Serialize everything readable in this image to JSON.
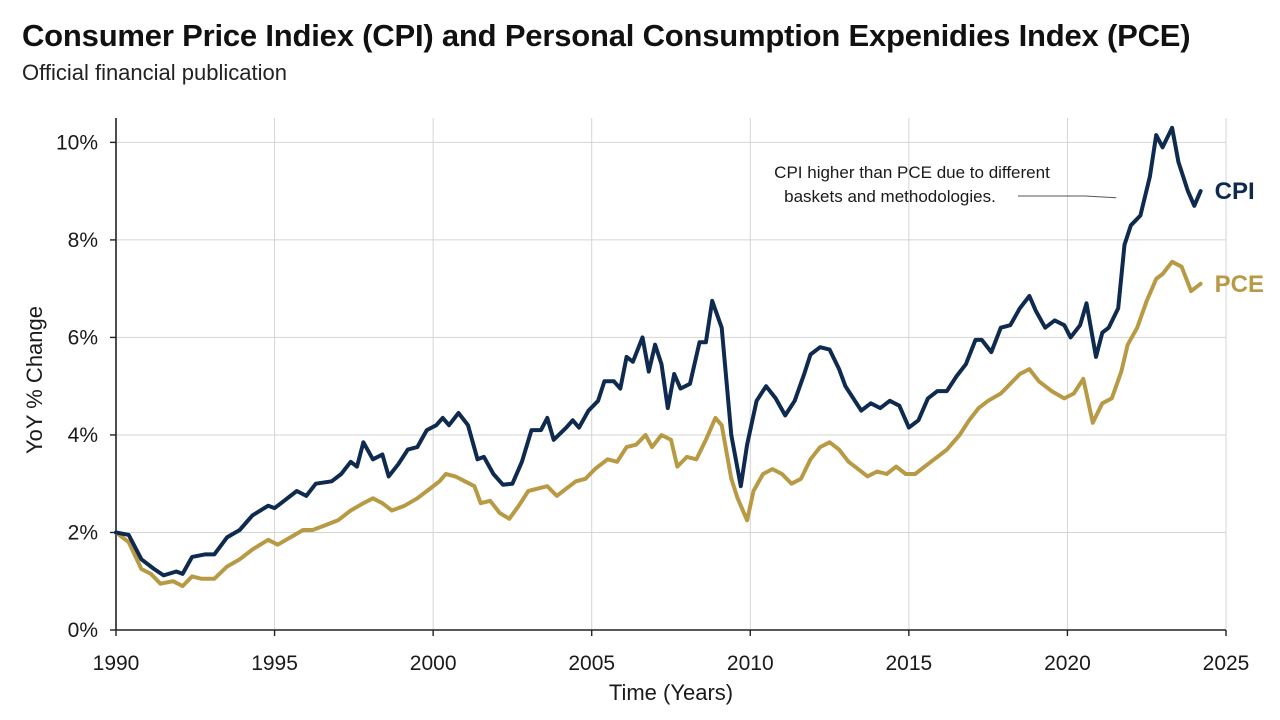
{
  "title": "Consumer Price Indiex (CPI) and Personal Consumption Expenidies Index (PCE)",
  "subtitle": "Official financial publication",
  "colors": {
    "cpi": "#0f2a4f",
    "pce": "#b89a45",
    "grid": "#d4d4d4",
    "axis": "#222222"
  },
  "chart_data": {
    "type": "line",
    "title": "Consumer Price Indiex (CPI) and Personal Consumption Expenidies Index (PCE)",
    "xlabel": "Time (Years)",
    "ylabel": "YoY % Change",
    "xlim": [
      1990,
      2025
    ],
    "ylim": [
      0,
      10.5
    ],
    "grid": true,
    "x_ticks": [
      1990,
      1995,
      2000,
      2005,
      2010,
      2015,
      2020,
      2025
    ],
    "x_tick_labels": [
      "1990",
      "1995",
      "2000",
      "2005",
      "2010",
      "2015",
      "2020",
      "2025"
    ],
    "y_ticks": [
      0,
      2,
      4,
      6,
      8,
      10
    ],
    "y_tick_labels": [
      "0%",
      "2%",
      "4%",
      "6%",
      "8%",
      "10%"
    ],
    "annotation": {
      "lines": [
        "CPI higher than PCE due to different",
        "baskets and methodologies."
      ],
      "points_to": {
        "series": "CPI",
        "x": 2021.6,
        "y": 8.7
      }
    },
    "series": [
      {
        "name": "CPI",
        "label": "CPI",
        "points": [
          [
            1990.0,
            2.0
          ],
          [
            1990.4,
            1.95
          ],
          [
            1990.8,
            1.45
          ],
          [
            1991.2,
            1.25
          ],
          [
            1991.5,
            1.12
          ],
          [
            1991.9,
            1.2
          ],
          [
            1992.1,
            1.15
          ],
          [
            1992.4,
            1.5
          ],
          [
            1992.8,
            1.55
          ],
          [
            1993.1,
            1.55
          ],
          [
            1993.5,
            1.9
          ],
          [
            1993.9,
            2.05
          ],
          [
            1994.3,
            2.35
          ],
          [
            1994.8,
            2.55
          ],
          [
            1995.0,
            2.5
          ],
          [
            1995.3,
            2.65
          ],
          [
            1995.7,
            2.85
          ],
          [
            1996.0,
            2.75
          ],
          [
            1996.3,
            3.0
          ],
          [
            1996.8,
            3.05
          ],
          [
            1997.1,
            3.2
          ],
          [
            1997.4,
            3.45
          ],
          [
            1997.6,
            3.35
          ],
          [
            1997.8,
            3.85
          ],
          [
            1998.1,
            3.5
          ],
          [
            1998.4,
            3.6
          ],
          [
            1998.6,
            3.15
          ],
          [
            1998.9,
            3.4
          ],
          [
            1999.2,
            3.7
          ],
          [
            1999.5,
            3.75
          ],
          [
            1999.8,
            4.1
          ],
          [
            2000.1,
            4.2
          ],
          [
            2000.3,
            4.35
          ],
          [
            2000.5,
            4.2
          ],
          [
            2000.8,
            4.45
          ],
          [
            2001.1,
            4.2
          ],
          [
            2001.4,
            3.5
          ],
          [
            2001.6,
            3.55
          ],
          [
            2001.9,
            3.2
          ],
          [
            2002.2,
            2.98
          ],
          [
            2002.5,
            3.0
          ],
          [
            2002.8,
            3.45
          ],
          [
            2003.1,
            4.1
          ],
          [
            2003.4,
            4.1
          ],
          [
            2003.6,
            4.35
          ],
          [
            2003.8,
            3.9
          ],
          [
            2004.2,
            4.15
          ],
          [
            2004.4,
            4.3
          ],
          [
            2004.6,
            4.15
          ],
          [
            2004.9,
            4.5
          ],
          [
            2005.2,
            4.7
          ],
          [
            2005.4,
            5.1
          ],
          [
            2005.7,
            5.1
          ],
          [
            2005.9,
            4.95
          ],
          [
            2006.1,
            5.6
          ],
          [
            2006.3,
            5.5
          ],
          [
            2006.6,
            6.0
          ],
          [
            2006.8,
            5.3
          ],
          [
            2007.0,
            5.85
          ],
          [
            2007.2,
            5.45
          ],
          [
            2007.4,
            4.55
          ],
          [
            2007.6,
            5.25
          ],
          [
            2007.8,
            4.95
          ],
          [
            2008.1,
            5.05
          ],
          [
            2008.4,
            5.9
          ],
          [
            2008.6,
            5.9
          ],
          [
            2008.8,
            6.75
          ],
          [
            2009.1,
            6.2
          ],
          [
            2009.4,
            4.0
          ],
          [
            2009.7,
            2.95
          ],
          [
            2009.9,
            3.8
          ],
          [
            2010.2,
            4.7
          ],
          [
            2010.5,
            5.0
          ],
          [
            2010.8,
            4.75
          ],
          [
            2011.1,
            4.4
          ],
          [
            2011.4,
            4.7
          ],
          [
            2011.7,
            5.25
          ],
          [
            2011.9,
            5.65
          ],
          [
            2012.2,
            5.8
          ],
          [
            2012.5,
            5.75
          ],
          [
            2012.8,
            5.35
          ],
          [
            2013.0,
            5.0
          ],
          [
            2013.3,
            4.7
          ],
          [
            2013.5,
            4.5
          ],
          [
            2013.8,
            4.65
          ],
          [
            2014.1,
            4.55
          ],
          [
            2014.4,
            4.7
          ],
          [
            2014.7,
            4.6
          ],
          [
            2015.0,
            4.15
          ],
          [
            2015.3,
            4.3
          ],
          [
            2015.6,
            4.75
          ],
          [
            2015.9,
            4.9
          ],
          [
            2016.2,
            4.9
          ],
          [
            2016.5,
            5.2
          ],
          [
            2016.8,
            5.45
          ],
          [
            2017.1,
            5.95
          ],
          [
            2017.3,
            5.95
          ],
          [
            2017.6,
            5.7
          ],
          [
            2017.9,
            6.2
          ],
          [
            2018.2,
            6.25
          ],
          [
            2018.5,
            6.6
          ],
          [
            2018.8,
            6.85
          ],
          [
            2019.0,
            6.55
          ],
          [
            2019.3,
            6.2
          ],
          [
            2019.6,
            6.35
          ],
          [
            2019.9,
            6.25
          ],
          [
            2020.1,
            6.0
          ],
          [
            2020.4,
            6.25
          ],
          [
            2020.6,
            6.7
          ],
          [
            2020.9,
            5.6
          ],
          [
            2021.1,
            6.1
          ],
          [
            2021.3,
            6.2
          ],
          [
            2021.6,
            6.6
          ],
          [
            2021.8,
            7.9
          ],
          [
            2022.0,
            8.3
          ],
          [
            2022.3,
            8.5
          ],
          [
            2022.6,
            9.3
          ],
          [
            2022.8,
            10.15
          ],
          [
            2023.0,
            9.9
          ],
          [
            2023.3,
            10.3
          ],
          [
            2023.5,
            9.6
          ],
          [
            2023.8,
            9.0
          ],
          [
            2024.0,
            8.7
          ],
          [
            2024.2,
            9.0
          ]
        ]
      },
      {
        "name": "PCE",
        "label": "PCE",
        "points": [
          [
            1990.0,
            2.0
          ],
          [
            1990.4,
            1.8
          ],
          [
            1990.8,
            1.25
          ],
          [
            1991.1,
            1.15
          ],
          [
            1991.4,
            0.95
          ],
          [
            1991.8,
            1.0
          ],
          [
            1992.1,
            0.9
          ],
          [
            1992.4,
            1.1
          ],
          [
            1992.7,
            1.05
          ],
          [
            1993.1,
            1.05
          ],
          [
            1993.5,
            1.3
          ],
          [
            1993.9,
            1.45
          ],
          [
            1994.3,
            1.65
          ],
          [
            1994.8,
            1.85
          ],
          [
            1995.1,
            1.75
          ],
          [
            1995.5,
            1.9
          ],
          [
            1995.9,
            2.05
          ],
          [
            1996.2,
            2.05
          ],
          [
            1996.6,
            2.15
          ],
          [
            1997.0,
            2.25
          ],
          [
            1997.4,
            2.45
          ],
          [
            1997.8,
            2.6
          ],
          [
            1998.1,
            2.7
          ],
          [
            1998.4,
            2.6
          ],
          [
            1998.7,
            2.45
          ],
          [
            1999.1,
            2.55
          ],
          [
            1999.5,
            2.7
          ],
          [
            1999.9,
            2.9
          ],
          [
            2000.2,
            3.05
          ],
          [
            2000.4,
            3.2
          ],
          [
            2000.7,
            3.15
          ],
          [
            2001.0,
            3.05
          ],
          [
            2001.3,
            2.95
          ],
          [
            2001.5,
            2.6
          ],
          [
            2001.8,
            2.65
          ],
          [
            2002.1,
            2.4
          ],
          [
            2002.4,
            2.28
          ],
          [
            2002.7,
            2.55
          ],
          [
            2003.0,
            2.85
          ],
          [
            2003.3,
            2.9
          ],
          [
            2003.6,
            2.95
          ],
          [
            2003.9,
            2.75
          ],
          [
            2004.2,
            2.9
          ],
          [
            2004.5,
            3.05
          ],
          [
            2004.8,
            3.1
          ],
          [
            2005.1,
            3.3
          ],
          [
            2005.5,
            3.5
          ],
          [
            2005.8,
            3.45
          ],
          [
            2006.1,
            3.75
          ],
          [
            2006.4,
            3.8
          ],
          [
            2006.7,
            4.0
          ],
          [
            2006.9,
            3.75
          ],
          [
            2007.2,
            4.0
          ],
          [
            2007.5,
            3.9
          ],
          [
            2007.7,
            3.35
          ],
          [
            2008.0,
            3.55
          ],
          [
            2008.3,
            3.5
          ],
          [
            2008.6,
            3.9
          ],
          [
            2008.9,
            4.35
          ],
          [
            2009.1,
            4.2
          ],
          [
            2009.4,
            3.1
          ],
          [
            2009.6,
            2.7
          ],
          [
            2009.9,
            2.25
          ],
          [
            2010.1,
            2.85
          ],
          [
            2010.4,
            3.2
          ],
          [
            2010.7,
            3.3
          ],
          [
            2011.0,
            3.2
          ],
          [
            2011.3,
            3.0
          ],
          [
            2011.6,
            3.1
          ],
          [
            2011.9,
            3.5
          ],
          [
            2012.2,
            3.75
          ],
          [
            2012.5,
            3.85
          ],
          [
            2012.8,
            3.7
          ],
          [
            2013.1,
            3.45
          ],
          [
            2013.4,
            3.3
          ],
          [
            2013.7,
            3.15
          ],
          [
            2014.0,
            3.25
          ],
          [
            2014.3,
            3.2
          ],
          [
            2014.6,
            3.35
          ],
          [
            2014.9,
            3.2
          ],
          [
            2015.2,
            3.2
          ],
          [
            2015.5,
            3.35
          ],
          [
            2015.8,
            3.5
          ],
          [
            2016.2,
            3.7
          ],
          [
            2016.6,
            4.0
          ],
          [
            2016.9,
            4.3
          ],
          [
            2017.2,
            4.55
          ],
          [
            2017.5,
            4.7
          ],
          [
            2017.9,
            4.85
          ],
          [
            2018.2,
            5.05
          ],
          [
            2018.5,
            5.25
          ],
          [
            2018.8,
            5.35
          ],
          [
            2019.1,
            5.1
          ],
          [
            2019.5,
            4.9
          ],
          [
            2019.9,
            4.75
          ],
          [
            2020.2,
            4.85
          ],
          [
            2020.5,
            5.15
          ],
          [
            2020.8,
            4.25
          ],
          [
            2021.1,
            4.65
          ],
          [
            2021.4,
            4.75
          ],
          [
            2021.7,
            5.3
          ],
          [
            2021.9,
            5.85
          ],
          [
            2022.2,
            6.2
          ],
          [
            2022.5,
            6.75
          ],
          [
            2022.8,
            7.2
          ],
          [
            2023.0,
            7.3
          ],
          [
            2023.3,
            7.55
          ],
          [
            2023.6,
            7.45
          ],
          [
            2023.9,
            6.95
          ],
          [
            2024.2,
            7.1
          ]
        ]
      }
    ]
  }
}
